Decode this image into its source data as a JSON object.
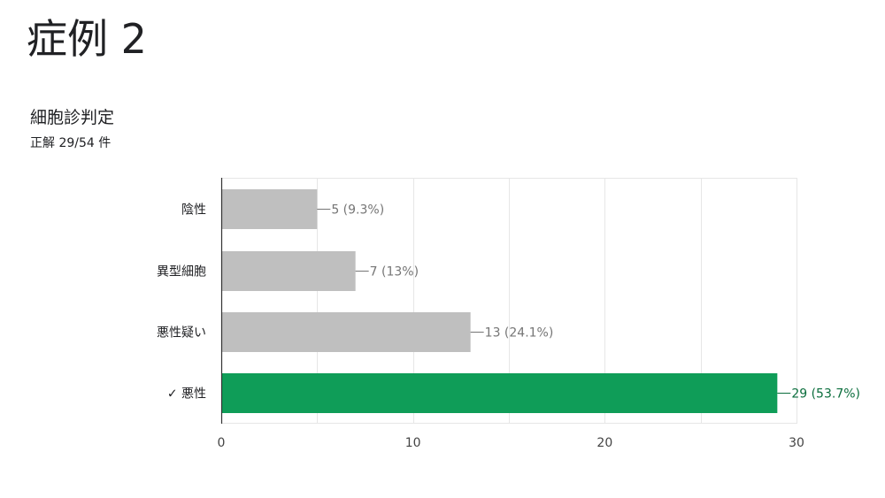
{
  "page": {
    "title": "症例 2"
  },
  "question": {
    "title": "細胞診判定",
    "summary": "正解 29/54 件"
  },
  "colors": {
    "default_bar": "#bfbfbf",
    "correct_bar": "#0f9d58",
    "default_label": "#757575",
    "correct_label": "#0b6e3d",
    "grid": "#e6e6e6",
    "axis": "#333333"
  },
  "chart_data": {
    "type": "bar",
    "orientation": "horizontal",
    "title": "",
    "xlabel": "",
    "ylabel": "",
    "xlim": [
      0,
      30
    ],
    "x_ticks": [
      0,
      10,
      20,
      30
    ],
    "grid": true,
    "legend": "none",
    "categories": [
      "陰性",
      "異型細胞",
      "悪性疑い",
      "✓ 悪性"
    ],
    "values": [
      5,
      7,
      13,
      29
    ],
    "value_labels": [
      "5 (9.3%)",
      "7 (13%)",
      "13 (24.1%)",
      "29 (53.7%)"
    ],
    "correct": [
      false,
      false,
      false,
      true
    ]
  }
}
